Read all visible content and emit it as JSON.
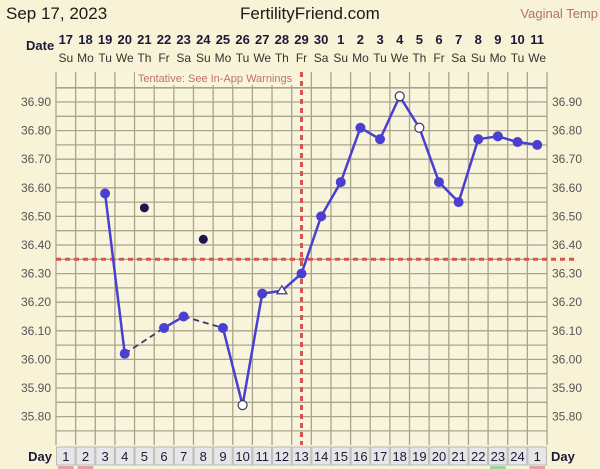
{
  "header": {
    "date": "Sep 17, 2023",
    "site": "FertilityFriend.com",
    "temp_type": "Vaginal Temp",
    "date_row_label": "Date",
    "day_row_label": "Day",
    "warning": "Tentative: See In-App Warnings"
  },
  "colors": {
    "line": "#4a3fd0",
    "coverline": "#d9534f",
    "grid": "#a9a48c",
    "background": "#f8f3d6",
    "discarded": "#1a1650"
  },
  "chart_data": {
    "type": "line",
    "dates": [
      "17",
      "18",
      "19",
      "20",
      "21",
      "22",
      "23",
      "24",
      "25",
      "26",
      "27",
      "28",
      "29",
      "30",
      "1",
      "2",
      "3",
      "4",
      "5",
      "6",
      "7",
      "8",
      "9",
      "10",
      "11"
    ],
    "weekdays": [
      "Su",
      "Mo",
      "Tu",
      "We",
      "Th",
      "Fr",
      "Sa",
      "Su",
      "Mo",
      "Tu",
      "We",
      "Th",
      "Fr",
      "Sa",
      "Su",
      "Mo",
      "Tu",
      "We",
      "Th",
      "Fr",
      "Sa",
      "Su",
      "Mo",
      "Tu",
      "We"
    ],
    "cycle_days": [
      "1",
      "2",
      "3",
      "4",
      "5",
      "6",
      "7",
      "8",
      "9",
      "10",
      "11",
      "12",
      "13",
      "14",
      "15",
      "16",
      "17",
      "18",
      "19",
      "20",
      "21",
      "22",
      "23",
      "24",
      "1"
    ],
    "temperatures": [
      null,
      null,
      36.58,
      36.02,
      null,
      36.11,
      36.15,
      null,
      36.11,
      35.84,
      36.23,
      36.24,
      36.3,
      36.5,
      36.62,
      36.81,
      36.77,
      36.92,
      36.81,
      36.62,
      36.55,
      36.77,
      36.78,
      36.76,
      36.75
    ],
    "markers": [
      "",
      "",
      "filled",
      "filled",
      "",
      "filled",
      "filled",
      "",
      "filled",
      "open-circle",
      "filled",
      "open-triangle",
      "filled",
      "filled",
      "filled",
      "filled",
      "filled",
      "open-circle",
      "open-circle",
      "filled",
      "filled",
      "filled",
      "filled",
      "filled",
      "filled"
    ],
    "discarded": [
      {
        "cycle_day": 5,
        "temp": 36.53
      },
      {
        "cycle_day": 8,
        "temp": 36.42
      }
    ],
    "dashed_segments": [
      [
        4,
        6
      ],
      [
        7,
        9
      ]
    ],
    "coverline": 36.35,
    "ovulation_day": 13,
    "y_ticks": [
      "36.90",
      "36.80",
      "36.70",
      "36.60",
      "36.50",
      "36.40",
      "36.30",
      "36.20",
      "36.10",
      "36.00",
      "35.90",
      "35.80"
    ],
    "ylim": [
      35.75,
      36.95
    ],
    "grid": true
  }
}
